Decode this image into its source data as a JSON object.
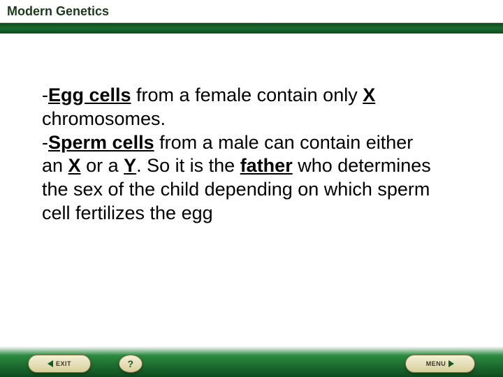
{
  "header": {
    "title": "Modern Genetics"
  },
  "content": {
    "egg_cells": "Egg cells",
    "egg_text_1": " from a female contain only ",
    "x1": "X",
    "egg_text_2": " chromosomes.",
    "sperm_cells": "Sperm cells",
    "sperm_text_1": " from a male can contain either an ",
    "x2": "X",
    "or": " or a ",
    "y": "Y",
    "sperm_text_2": ".  So it is the ",
    "father": "father",
    "sperm_text_3": " who determines the sex of the child depending on which sperm cell fertilizes the egg"
  },
  "footer": {
    "exit": "EXIT",
    "help": "?",
    "menu": "MENU"
  },
  "colors": {
    "green_dark": "#0f4a1f",
    "green_mid": "#1a6b2f",
    "btn_bg_top": "#f5f0d8",
    "btn_bg_bot": "#d8ce9a"
  }
}
